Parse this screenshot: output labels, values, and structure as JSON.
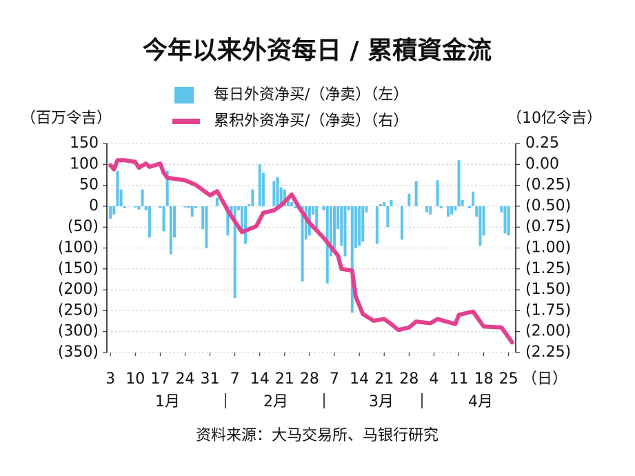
{
  "chart_data": {
    "type": "bar_line",
    "title": "今年以来外资每日 / 累積資金流",
    "y_label": "（百万令吉）",
    "y2_label": "（10亿令吉）",
    "x_unit_label": "（日）",
    "source": "资料来源：大马交易所、马银行研究",
    "month_labels": [
      "1月",
      "2月",
      "3月",
      "4月"
    ],
    "negative_tick_color": "#e2301e",
    "grid": true,
    "xlim": [
      2,
      117
    ],
    "xticks": [
      3,
      10,
      17,
      24,
      31,
      {
        "value": 38,
        "label": "7"
      },
      {
        "value": 45,
        "label": "14"
      },
      {
        "value": 52,
        "label": "21"
      },
      {
        "value": 59,
        "label": "28"
      },
      {
        "value": 66,
        "label": "7"
      },
      {
        "value": 73,
        "label": "14"
      },
      {
        "value": 80,
        "label": "21"
      },
      {
        "value": 87,
        "label": "28"
      },
      {
        "value": 94,
        "label": "4"
      },
      {
        "value": 101,
        "label": "11"
      },
      {
        "value": 108,
        "label": "18"
      },
      {
        "value": 115,
        "label": "25"
      }
    ],
    "ylim": [
      -350,
      150
    ],
    "yticks": [
      150,
      100,
      50,
      0,
      {
        "value": -50,
        "label": "(50)"
      },
      {
        "value": -100,
        "label": "(100)"
      },
      {
        "value": -150,
        "label": "(150)"
      },
      {
        "value": -200,
        "label": "(200)"
      },
      {
        "value": -250,
        "label": "(250)"
      },
      {
        "value": -300,
        "label": "(300)"
      },
      {
        "value": -350,
        "label": "(350)"
      }
    ],
    "y2lim": [
      -2.25,
      0.25
    ],
    "y2ticks": [
      0.25,
      {
        "value": 0,
        "label": "0.00"
      },
      {
        "value": -0.25,
        "label": "(0.25)"
      },
      {
        "value": -0.5,
        "label": "(0.50)"
      },
      {
        "value": -0.75,
        "label": "(0.75)"
      },
      {
        "value": -1,
        "label": "(1.00)"
      },
      {
        "value": -1.25,
        "label": "(1.25)"
      },
      {
        "value": -1.5,
        "label": "(1.50)"
      },
      {
        "value": -1.75,
        "label": "(1.75)"
      },
      {
        "value": -2,
        "label": "(2.00)"
      },
      {
        "value": -2.25,
        "label": "(2.25)"
      }
    ],
    "series": [
      {
        "name": "每日外资净买/（净卖）（左）",
        "type": "bar",
        "color": "#5ec4ee",
        "x": [
          3,
          4,
          5,
          6,
          7,
          10,
          11,
          12,
          13,
          14,
          17,
          18,
          19,
          20,
          21,
          24,
          25,
          26,
          27,
          29,
          30,
          33,
          36,
          37,
          38,
          39,
          40,
          41,
          42,
          43,
          45,
          46,
          49,
          50,
          51,
          52,
          53,
          54,
          55,
          57,
          58,
          59,
          60,
          61,
          63,
          64,
          65,
          66,
          67,
          68,
          69,
          70,
          71,
          72,
          73,
          74,
          75,
          78,
          79,
          80,
          81,
          82,
          85,
          87,
          89,
          92,
          93,
          95,
          96,
          98,
          99,
          100,
          101,
          102,
          104,
          105,
          106,
          107,
          108,
          113,
          114,
          115
        ],
        "values": [
          -30,
          -20,
          85,
          40,
          -5,
          -3,
          -8,
          40,
          -10,
          -75,
          -5,
          -60,
          85,
          -115,
          -75,
          -3,
          -5,
          -25,
          -5,
          -55,
          -100,
          20,
          -70,
          -30,
          -220,
          -10,
          -60,
          -90,
          5,
          40,
          100,
          80,
          60,
          70,
          45,
          40,
          20,
          10,
          -5,
          -180,
          -80,
          -70,
          -20,
          -55,
          -10,
          -185,
          -120,
          -100,
          -55,
          -95,
          -120,
          -10,
          -255,
          -100,
          -95,
          -85,
          -15,
          -90,
          5,
          10,
          -50,
          15,
          -80,
          30,
          60,
          -15,
          -20,
          62,
          -5,
          -25,
          -20,
          -10,
          110,
          15,
          -5,
          35,
          -25,
          -95,
          -70,
          -15,
          -65,
          -70
        ]
      },
      {
        "name": "累积外资净买/（净卖）（右）",
        "type": "line",
        "axis": "y2",
        "color": "#e2418f",
        "x": [
          3,
          4,
          5,
          7,
          10,
          11,
          13,
          14,
          17,
          18,
          19,
          24,
          27,
          31,
          33,
          36,
          40,
          44,
          46,
          49,
          51,
          54,
          56,
          59,
          63,
          67,
          68,
          71,
          72,
          74,
          77,
          80,
          82,
          84,
          87,
          89,
          93,
          95,
          100,
          101,
          105,
          108,
          113,
          116
        ],
        "values": [
          -0.01,
          -0.06,
          0.05,
          0.05,
          0.03,
          -0.04,
          0.01,
          -0.03,
          0.01,
          -0.1,
          -0.16,
          -0.19,
          -0.245,
          -0.37,
          -0.32,
          -0.55,
          -0.81,
          -0.74,
          -0.58,
          -0.55,
          -0.49,
          -0.36,
          -0.51,
          -0.7,
          -0.88,
          -1.09,
          -1.25,
          -1.27,
          -1.58,
          -1.79,
          -1.87,
          -1.85,
          -1.91,
          -1.98,
          -1.95,
          -1.88,
          -1.9,
          -1.85,
          -1.91,
          -1.8,
          -1.76,
          -1.94,
          -1.95,
          -2.13
        ]
      }
    ]
  }
}
